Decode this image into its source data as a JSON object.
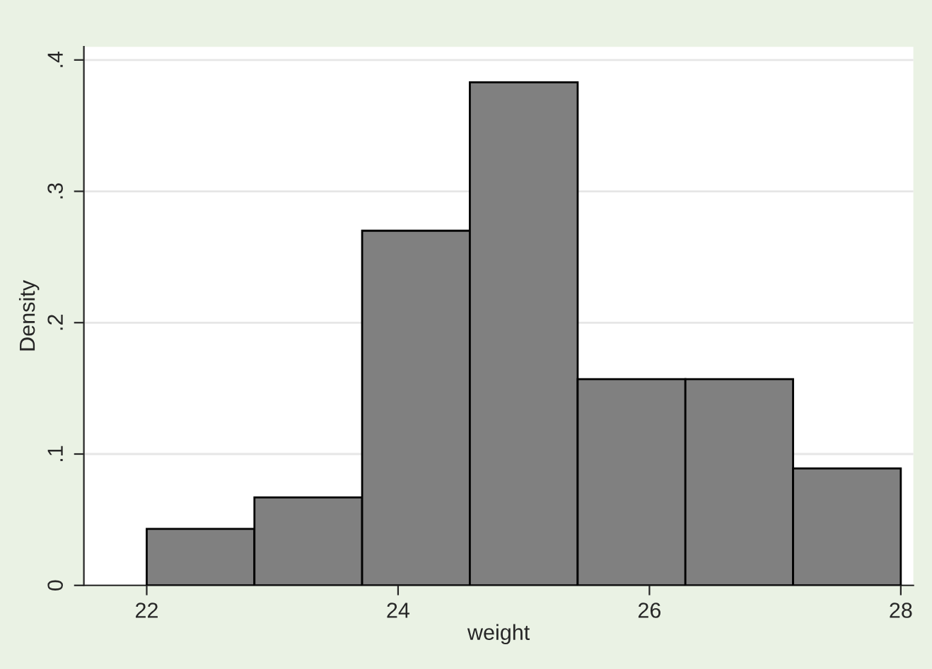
{
  "chart_data": {
    "type": "histogram",
    "xlabel": "weight",
    "ylabel": "Density",
    "bins": [
      22,
      22.857,
      23.714,
      24.571,
      25.429,
      26.286,
      27.143,
      28
    ],
    "values": [
      0.043,
      0.067,
      0.27,
      0.383,
      0.157,
      0.157,
      0.089
    ],
    "color": "#808080",
    "xlim": [
      21.5,
      28.1
    ],
    "xticks": [
      22,
      24,
      26,
      28
    ],
    "ylim": [
      0,
      0.41
    ],
    "yticks": [
      {
        "value": 0,
        "label": "0"
      },
      {
        "value": 0.1,
        "label": ".1"
      },
      {
        "value": 0.2,
        "label": ".2"
      },
      {
        "value": 0.3,
        "label": ".3"
      },
      {
        "value": 0.4,
        "label": ".4"
      }
    ],
    "grid": "y",
    "legend": false
  }
}
